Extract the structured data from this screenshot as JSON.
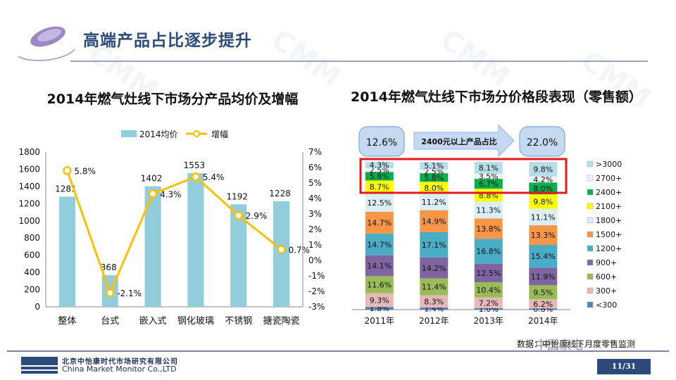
{
  "slide": {
    "title": "高端产品占比逐步提升",
    "company_cn": "北京中怡康时代市场研究有限公司",
    "company_en": "China Market Monitor Co.,LTD",
    "page": "11/31",
    "source": "数据：中怡康线下月度零售监测",
    "wechat": "中国家电",
    "watermark": "CMM",
    "colors": {
      "title": "#2c4a7a",
      "bar": "#92cddc",
      "line": "#ffc000",
      "highlight": "#e31a1c"
    }
  },
  "chart_data": [
    {
      "type": "bar",
      "title": "2014年燃气灶线下市场分产品均价及增幅",
      "categories": [
        "整体",
        "台式",
        "嵌入式",
        "钢化玻璃",
        "不锈钢",
        "搪瓷陶瓷"
      ],
      "legend": [
        "2014均价",
        "增幅"
      ],
      "series": [
        {
          "name": "2014均价",
          "type": "bar",
          "axis": "left",
          "values": [
            1281,
            368,
            1402,
            1553,
            1192,
            1228
          ],
          "labels": [
            "1281",
            "368",
            "1402",
            "1553",
            "1192",
            "1228"
          ]
        },
        {
          "name": "增幅",
          "type": "line",
          "axis": "right",
          "values": [
            5.8,
            -2.1,
            4.3,
            5.4,
            2.9,
            0.7
          ],
          "labels": [
            "5.8%",
            "-2.1%",
            "4.3%",
            "5.4%",
            "2.9%",
            "0.7%"
          ]
        }
      ],
      "ylim": [
        0,
        1800
      ],
      "y_ticks": [
        "0",
        "200",
        "400",
        "600",
        "800",
        "1000",
        "1200",
        "1400",
        "1600",
        "1800"
      ],
      "y2lim": [
        -3,
        7
      ],
      "y2_ticks": [
        "-3%",
        "-2%",
        "-1%",
        "0%",
        "1%",
        "2%",
        "3%",
        "4%",
        "5%",
        "6%",
        "7%"
      ]
    },
    {
      "type": "bar",
      "stacked": "percent",
      "title": "2014年燃气灶线下市场分价格段表现（零售额）",
      "categories": [
        "2011年",
        "2012年",
        "2013年",
        "2014年"
      ],
      "series": [
        {
          "name": "<300",
          "color": "#4f81bd",
          "values": [
            1.8,
            1.4,
            1.0,
            0.8
          ],
          "labels": [
            "1.8%",
            "1.4%",
            "1.0%",
            "0.8%"
          ]
        },
        {
          "name": "300+",
          "color": "#e6b9b8",
          "values": [
            9.3,
            8.3,
            7.2,
            6.2
          ],
          "labels": [
            "9.3%",
            "8.3%",
            "7.2%",
            "6.2%"
          ]
        },
        {
          "name": "600+",
          "color": "#9bbb59",
          "values": [
            11.6,
            11.4,
            10.4,
            9.5
          ],
          "labels": [
            "11.6%",
            "11.4%",
            "10.4%",
            "9.5%"
          ]
        },
        {
          "name": "900+",
          "color": "#8064a2",
          "values": [
            14.1,
            14.2,
            12.5,
            11.9
          ],
          "labels": [
            "14.1%",
            "14.2%",
            "12.5%",
            "11.9%"
          ]
        },
        {
          "name": "1200+",
          "color": "#4bacc6",
          "values": [
            14.7,
            17.1,
            16.8,
            15.4
          ],
          "labels": [
            "14.7%",
            "17.1%",
            "16.8%",
            "15.4%"
          ]
        },
        {
          "name": "1500+",
          "color": "#f79646",
          "values": [
            14.7,
            14.9,
            13.8,
            13.3
          ],
          "labels": [
            "14.7%",
            "14.9%",
            "13.8%",
            "13.3%"
          ]
        },
        {
          "name": "1800+",
          "color": "#dbeef4",
          "values": [
            12.5,
            11.2,
            11.3,
            11.1
          ],
          "labels": [
            "12.5%",
            "11.2%",
            "11.3%",
            "11.1%"
          ]
        },
        {
          "name": "2100+",
          "color": "#ffff00",
          "values": [
            8.7,
            8.0,
            8.8,
            9.8
          ],
          "labels": [
            "8.7%",
            "8.0%",
            "8.8%",
            "9.8%"
          ]
        },
        {
          "name": "2400+",
          "color": "#00b050",
          "values": [
            5.8,
            5.8,
            6.7,
            8.0
          ],
          "labels": [
            "5.8%",
            "5.8%",
            "6.7%",
            "8.0%"
          ]
        },
        {
          "name": "2700+",
          "color": "#f2f2f2",
          "values": [
            2.5,
            2.5,
            3.5,
            4.2
          ],
          "labels": [
            "2.5%",
            "2.5%",
            "3.5%",
            "4.2%"
          ]
        },
        {
          "name": ">3000",
          "color": "#b7dee8",
          "values": [
            4.3,
            5.1,
            8.1,
            9.8
          ],
          "labels": [
            "4.3%",
            "5.1%",
            "8.1%",
            "9.8%"
          ]
        }
      ],
      "legend_order": [
        ">3000",
        "2700+",
        "2400+",
        "2100+",
        "1800+",
        "1500+",
        "1200+",
        "900+",
        "600+",
        "300+",
        "<300"
      ],
      "callouts": {
        "left": "12.6%",
        "arrow": "2400元以上产品占比",
        "right": "22.0%"
      },
      "ylim": [
        0,
        100
      ]
    }
  ]
}
